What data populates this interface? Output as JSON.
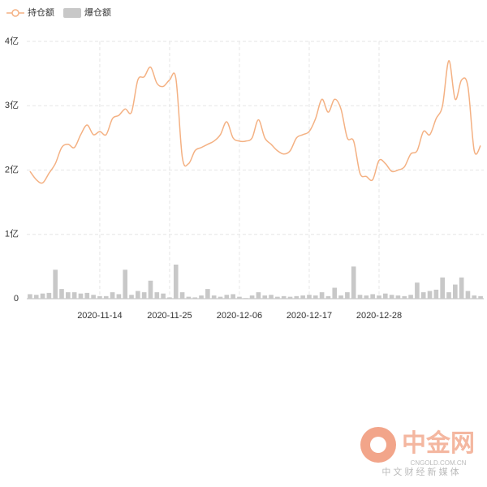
{
  "chart_data": {
    "type": "combo",
    "categories": [
      null,
      null,
      null,
      null,
      null,
      null,
      null,
      null,
      null,
      null,
      null,
      "2020-11-14",
      null,
      null,
      null,
      null,
      null,
      null,
      null,
      null,
      null,
      null,
      "2020-11-25",
      null,
      null,
      null,
      null,
      null,
      null,
      null,
      null,
      null,
      null,
      "2020-12-06",
      null,
      null,
      null,
      null,
      null,
      null,
      null,
      null,
      null,
      null,
      "2020-12-17",
      null,
      null,
      null,
      null,
      null,
      null,
      null,
      null,
      null,
      null,
      "2020-12-28",
      null,
      null,
      null,
      null,
      null,
      null,
      null,
      null,
      null,
      null,
      null,
      null,
      null,
      null,
      null,
      null
    ],
    "series": [
      {
        "name": "持仓额",
        "type": "line",
        "color": "#f4b183",
        "values": [
          1.98,
          1.85,
          1.8,
          1.95,
          2.1,
          2.35,
          2.4,
          2.35,
          2.55,
          2.7,
          2.55,
          2.6,
          2.55,
          2.8,
          2.85,
          2.95,
          2.9,
          3.4,
          3.45,
          3.6,
          3.35,
          3.3,
          3.4,
          3.42,
          2.2,
          2.1,
          2.3,
          2.35,
          2.4,
          2.45,
          2.55,
          2.75,
          2.5,
          2.45,
          2.45,
          2.5,
          2.78,
          2.5,
          2.4,
          2.3,
          2.25,
          2.3,
          2.5,
          2.55,
          2.6,
          2.8,
          3.1,
          2.9,
          3.1,
          2.95,
          2.5,
          2.45,
          1.95,
          1.9,
          1.85,
          2.15,
          2.1,
          1.98,
          2.0,
          2.05,
          2.25,
          2.3,
          2.6,
          2.55,
          2.8,
          3.0,
          3.7,
          3.1,
          3.4,
          3.3,
          2.3,
          2.38
        ]
      },
      {
        "name": "爆仓额",
        "type": "bar",
        "color": "#c8c8c8",
        "values": [
          0.07,
          0.06,
          0.08,
          0.09,
          0.45,
          0.15,
          0.1,
          0.1,
          0.08,
          0.09,
          0.06,
          0.04,
          0.04,
          0.1,
          0.07,
          0.45,
          0.06,
          0.12,
          0.1,
          0.28,
          0.1,
          0.08,
          0.02,
          0.53,
          0.1,
          0.03,
          0.02,
          0.05,
          0.15,
          0.05,
          0.03,
          0.06,
          0.07,
          0.03,
          0.01,
          0.05,
          0.1,
          0.05,
          0.06,
          0.03,
          0.04,
          0.03,
          0.04,
          0.05,
          0.06,
          0.05,
          0.1,
          0.04,
          0.17,
          0.05,
          0.1,
          0.5,
          0.06,
          0.05,
          0.07,
          0.05,
          0.08,
          0.06,
          0.05,
          0.04,
          0.06,
          0.25,
          0.1,
          0.12,
          0.14,
          0.33,
          0.1,
          0.22,
          0.33,
          0.12,
          0.05,
          0.04
        ]
      }
    ],
    "ylim": [
      0,
      4
    ],
    "yticks": [
      0,
      {
        "value": 1,
        "label": "1亿"
      },
      {
        "value": 2,
        "label": "2亿"
      },
      {
        "value": 3,
        "label": "3亿"
      },
      {
        "value": 4,
        "label": "4亿"
      }
    ],
    "grid": true,
    "legend": "top-left"
  },
  "watermark": {
    "brand": "中金网",
    "domain": "CNGOLD.COM.CN",
    "tagline": "中 文 财 经 新 媒 体"
  }
}
